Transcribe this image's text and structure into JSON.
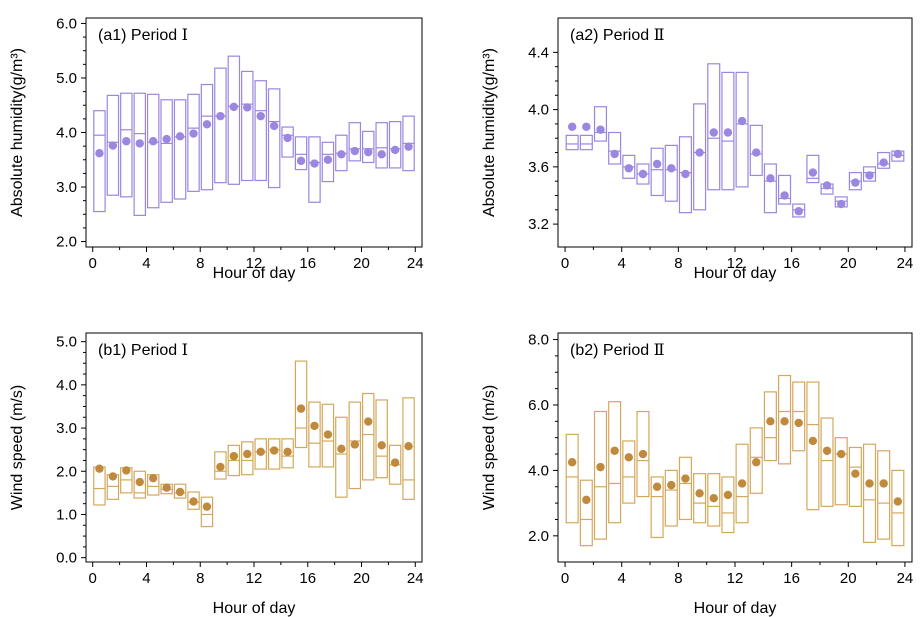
{
  "chart_data": [
    {
      "id": "a1",
      "type": "box",
      "title": "(a1) Period Ⅰ",
      "xlabel": "Hour of day",
      "ylabel": "Absolute humidity(g/m³)",
      "xlim": [
        -0.5,
        24.5
      ],
      "ylim": [
        1.9,
        6.1
      ],
      "xticks": [
        0,
        4,
        8,
        12,
        16,
        20,
        24
      ],
      "yticks": [
        2.0,
        3.0,
        4.0,
        5.0,
        6.0
      ],
      "ytick_labels": [
        "2.0",
        "3.0",
        "4.0",
        "5.0",
        "6.0"
      ],
      "color": "#9b86e0",
      "marker_color": "#9b86e0",
      "hours": [
        0.5,
        1.5,
        2.5,
        3.5,
        4.5,
        5.5,
        6.5,
        7.5,
        8.5,
        9.5,
        10.5,
        11.5,
        12.5,
        13.5,
        14.5,
        15.5,
        16.5,
        17.5,
        18.5,
        19.5,
        20.5,
        21.5,
        22.5,
        23.5
      ],
      "low": [
        2.55,
        2.85,
        2.82,
        2.48,
        2.62,
        2.72,
        2.78,
        2.92,
        2.95,
        3.08,
        3.05,
        3.12,
        3.12,
        2.99,
        3.55,
        3.32,
        2.72,
        3.1,
        3.3,
        3.48,
        3.45,
        3.35,
        3.35,
        3.3
      ],
      "median": [
        3.95,
        3.82,
        4.05,
        3.98,
        3.82,
        3.8,
        3.92,
        4.08,
        4.3,
        4.3,
        4.48,
        4.52,
        4.4,
        4.2,
        3.95,
        3.6,
        3.45,
        3.6,
        3.62,
        3.7,
        3.7,
        3.72,
        3.7,
        3.8
      ],
      "high": [
        4.4,
        4.68,
        4.72,
        4.72,
        4.7,
        4.6,
        4.6,
        4.7,
        4.88,
        5.18,
        5.4,
        5.12,
        4.95,
        4.8,
        4.1,
        3.92,
        3.92,
        3.82,
        3.95,
        4.18,
        4.02,
        4.18,
        4.2,
        4.3
      ],
      "mean": [
        3.62,
        3.76,
        3.84,
        3.8,
        3.84,
        3.88,
        3.93,
        3.98,
        4.15,
        4.3,
        4.47,
        4.46,
        4.3,
        4.12,
        3.9,
        3.48,
        3.43,
        3.5,
        3.6,
        3.66,
        3.64,
        3.6,
        3.68,
        3.74
      ]
    },
    {
      "id": "a2",
      "type": "box",
      "title": "(a2) Period Ⅱ",
      "xlabel": "Hour of day",
      "ylabel": "Absolute humidity(g/m³)",
      "xlim": [
        -0.5,
        24.5
      ],
      "ylim": [
        3.04,
        4.64
      ],
      "xticks": [
        0,
        4,
        8,
        12,
        16,
        20,
        24
      ],
      "yticks": [
        3.2,
        3.6,
        4.0,
        4.4
      ],
      "ytick_labels": [
        "3.2",
        "3.6",
        "4.0",
        "4.4"
      ],
      "color": "#9b86e0",
      "marker_color": "#9b86e0",
      "hours": [
        0.5,
        1.5,
        2.5,
        3.5,
        4.5,
        5.5,
        6.5,
        7.5,
        8.5,
        9.5,
        10.5,
        11.5,
        12.5,
        13.5,
        14.5,
        15.5,
        16.5,
        17.5,
        18.5,
        19.5,
        20.5,
        21.5,
        22.5,
        23.5
      ],
      "low": [
        3.72,
        3.72,
        3.78,
        3.62,
        3.52,
        3.48,
        3.4,
        3.36,
        3.28,
        3.3,
        3.44,
        3.44,
        3.46,
        3.54,
        3.28,
        3.34,
        3.25,
        3.49,
        3.41,
        3.32,
        3.44,
        3.5,
        3.59,
        3.64
      ],
      "median": [
        3.76,
        3.76,
        3.84,
        3.71,
        3.6,
        3.55,
        3.58,
        3.58,
        3.56,
        3.7,
        3.8,
        3.78,
        3.9,
        3.69,
        3.5,
        3.38,
        3.3,
        3.52,
        3.45,
        3.36,
        3.5,
        3.56,
        3.62,
        3.68
      ],
      "high": [
        3.82,
        3.82,
        4.02,
        3.84,
        3.68,
        3.62,
        3.73,
        3.75,
        3.81,
        4.04,
        4.32,
        4.26,
        4.26,
        3.89,
        3.62,
        3.54,
        3.34,
        3.68,
        3.48,
        3.39,
        3.56,
        3.6,
        3.7,
        3.71
      ],
      "mean": [
        3.88,
        3.88,
        3.86,
        3.69,
        3.59,
        3.55,
        3.62,
        3.59,
        3.55,
        3.7,
        3.84,
        3.84,
        3.92,
        3.7,
        3.52,
        3.4,
        3.29,
        3.56,
        3.47,
        3.34,
        3.49,
        3.54,
        3.63,
        3.69
      ]
    },
    {
      "id": "b1",
      "type": "box",
      "title": "(b1) Period Ⅰ",
      "xlabel": "Hour of day",
      "ylabel": "Wind speed  (m/s)",
      "xlim": [
        -0.5,
        24.5
      ],
      "ylim": [
        -0.1,
        5.2
      ],
      "xticks": [
        0,
        4,
        8,
        12,
        16,
        20,
        24
      ],
      "yticks": [
        0.0,
        1.0,
        2.0,
        3.0,
        4.0,
        5.0
      ],
      "ytick_labels": [
        "0.0",
        "1.0",
        "2.0",
        "3.0",
        "4.0",
        "5.0"
      ],
      "color": "#d4a85c",
      "marker_color": "#c08a3e",
      "hours": [
        0.5,
        1.5,
        2.5,
        3.5,
        4.5,
        5.5,
        6.5,
        7.5,
        8.5,
        9.5,
        10.5,
        11.5,
        12.5,
        13.5,
        14.5,
        15.5,
        16.5,
        17.5,
        18.5,
        19.5,
        20.5,
        21.5,
        22.5,
        23.5
      ],
      "low": [
        1.22,
        1.35,
        1.5,
        1.38,
        1.45,
        1.48,
        1.38,
        1.12,
        0.72,
        1.82,
        1.9,
        1.92,
        2.05,
        2.05,
        2.08,
        2.55,
        2.1,
        2.1,
        1.4,
        1.6,
        1.8,
        1.85,
        1.7,
        1.35
      ],
      "median": [
        1.6,
        1.65,
        1.8,
        1.5,
        1.65,
        1.58,
        1.5,
        1.28,
        1.0,
        2.0,
        2.25,
        2.25,
        2.45,
        2.5,
        2.35,
        3.0,
        2.65,
        2.7,
        2.4,
        2.7,
        2.85,
        2.35,
        2.15,
        1.8
      ],
      "high": [
        2.1,
        1.92,
        2.08,
        2.0,
        1.92,
        1.7,
        1.7,
        1.52,
        1.4,
        2.45,
        2.6,
        2.68,
        2.75,
        2.75,
        2.75,
        4.55,
        3.6,
        3.55,
        3.25,
        3.6,
        3.8,
        3.65,
        2.6,
        3.7
      ],
      "mean": [
        2.06,
        1.88,
        2.02,
        1.75,
        1.84,
        1.62,
        1.52,
        1.3,
        1.18,
        2.1,
        2.35,
        2.4,
        2.45,
        2.48,
        2.45,
        3.45,
        3.05,
        2.85,
        2.52,
        2.62,
        3.15,
        2.6,
        2.2,
        2.58
      ]
    },
    {
      "id": "b2",
      "type": "box",
      "title": "(b2) Period Ⅱ",
      "xlabel": "Hour of day",
      "ylabel": "Wind speed  (m/s)",
      "xlim": [
        -0.5,
        24.5
      ],
      "ylim": [
        1.2,
        8.2
      ],
      "xticks": [
        0,
        4,
        8,
        12,
        16,
        20,
        24
      ],
      "yticks": [
        2.0,
        4.0,
        6.0,
        8.0
      ],
      "ytick_labels": [
        "2.0",
        "4.0",
        "6.0",
        "8.0"
      ],
      "color": "#d4a85c",
      "marker_color": "#c08a3e",
      "hours": [
        0.5,
        1.5,
        2.5,
        3.5,
        4.5,
        5.5,
        6.5,
        7.5,
        8.5,
        9.5,
        10.5,
        11.5,
        12.5,
        13.5,
        14.5,
        15.5,
        16.5,
        17.5,
        18.5,
        19.5,
        20.5,
        21.5,
        22.5,
        23.5
      ],
      "low": [
        2.4,
        1.7,
        1.9,
        2.4,
        3.0,
        3.2,
        1.95,
        2.3,
        2.5,
        2.4,
        2.3,
        2.1,
        2.4,
        3.3,
        4.3,
        4.2,
        4.6,
        2.8,
        2.9,
        2.95,
        2.9,
        1.8,
        1.9,
        1.7
      ],
      "median": [
        3.8,
        2.5,
        3.5,
        3.6,
        3.8,
        4.3,
        3.2,
        3.4,
        3.6,
        3.0,
        2.9,
        2.7,
        3.2,
        4.4,
        5.0,
        5.8,
        5.8,
        5.4,
        4.3,
        4.5,
        4.1,
        3.1,
        3.0,
        2.7
      ],
      "high": [
        5.1,
        3.7,
        5.8,
        6.1,
        4.9,
        5.8,
        3.8,
        4.0,
        4.4,
        3.9,
        3.9,
        3.8,
        4.8,
        5.3,
        6.4,
        6.9,
        6.7,
        6.7,
        5.6,
        5.0,
        4.7,
        4.8,
        4.6,
        4.0
      ],
      "mean": [
        4.25,
        3.1,
        4.1,
        4.6,
        4.4,
        4.5,
        3.5,
        3.55,
        3.75,
        3.3,
        3.15,
        3.25,
        3.6,
        4.25,
        5.5,
        5.5,
        5.45,
        4.9,
        4.6,
        4.5,
        3.9,
        3.6,
        3.6,
        3.05
      ]
    }
  ]
}
